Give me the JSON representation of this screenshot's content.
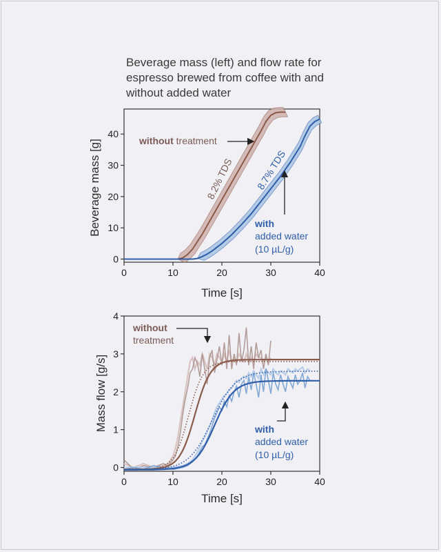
{
  "title_lines": [
    "Beverage mass (left) and flow rate for",
    "espresso brewed from coffee with and",
    "without added water"
  ],
  "colors": {
    "without": "#8a5a4a",
    "without_band": "#cfb2ad",
    "without_noisy": "#a98e8a",
    "without_noisy_light": "#d7c3c0",
    "with": "#2f5ea8",
    "with_band": "#a9c4e4",
    "with_noisy": "#6f9bd0",
    "with_noisy_light": "#b7cde9"
  },
  "chart_data": [
    {
      "type": "line",
      "title": "Beverage mass",
      "xlabel": "Time [s]",
      "ylabel": "Beverage mass [g]",
      "xlim": [
        0,
        40
      ],
      "ylim": [
        -1,
        48
      ],
      "xticks": [
        "0",
        "10",
        "20",
        "30",
        "40"
      ],
      "yticks": [
        "0",
        "10",
        "20",
        "30",
        "40"
      ],
      "series": [
        {
          "name": "without treatment",
          "band_halfwidth": 1.5,
          "x": [
            0,
            11,
            12,
            13,
            14,
            16,
            18,
            20,
            22,
            24,
            26,
            28,
            29,
            30,
            31,
            32,
            33
          ],
          "values": [
            0,
            0,
            0.4,
            1.5,
            3.2,
            8,
            13.5,
            19,
            24.5,
            30,
            35.5,
            41,
            44,
            46,
            46.8,
            47,
            47
          ]
        },
        {
          "name": "with added water (10 µL/g)",
          "band_halfwidth": 1.2,
          "x": [
            0,
            14,
            15,
            16,
            17,
            18,
            20,
            22,
            24,
            26,
            28,
            30,
            32,
            34,
            36,
            37,
            38,
            39,
            40
          ],
          "values": [
            0,
            0,
            0.2,
            0.8,
            1.6,
            2.6,
            5.0,
            7.8,
            11.0,
            14.5,
            18.5,
            22.5,
            26.5,
            31,
            36,
            39.5,
            42.5,
            44,
            44.8
          ]
        }
      ],
      "annotations": [
        {
          "bold": "without",
          "text": " treatment"
        },
        {
          "text": "8.2% TDS"
        },
        {
          "text": "8.7% TDS"
        },
        {
          "bold": "with",
          "lines": [
            "added water",
            "(10 µL/g)"
          ]
        }
      ]
    },
    {
      "type": "line",
      "title": "Mass flow",
      "xlabel": "Time [s]",
      "ylabel": "Mass flow [g/s]",
      "xlim": [
        0,
        40
      ],
      "ylim": [
        -0.1,
        4
      ],
      "xticks": [
        "0",
        "10",
        "20",
        "30",
        "40"
      ],
      "yticks": [
        "0",
        "1",
        "2",
        "3",
        "4"
      ],
      "series": [
        {
          "name": "without treatment (fit)",
          "fit": {
            "amplitude": 2.9,
            "midpoint": 14.5,
            "width": 1.6,
            "baseline": -0.05
          },
          "dotted": {
            "amplitude": 2.85,
            "midpoint": 13.2,
            "width": 1.5,
            "baseline": -0.05
          },
          "noisy_x": [
            0,
            2,
            4,
            6,
            8,
            9,
            10,
            10.5,
            11,
            11.5,
            12,
            12.5,
            13,
            13.5,
            14,
            14.5,
            15,
            15.5,
            16,
            16.5,
            17,
            17.5,
            18,
            18.5,
            19,
            19.5,
            20,
            20.5,
            21,
            21.5,
            22,
            22.5,
            23,
            23.5,
            24,
            24.5,
            25,
            25.5,
            26,
            26.5,
            27,
            27.5,
            28,
            28.5,
            29,
            29.5,
            30
          ],
          "noisy_y": [
            0.2,
            -0.05,
            0.05,
            0,
            0.1,
            0.05,
            0.2,
            0.3,
            0.55,
            0.9,
            1.4,
            1.8,
            2.1,
            2.5,
            2.6,
            2.9,
            2.75,
            2.4,
            3.0,
            2.6,
            2.2,
            2.9,
            3.1,
            2.5,
            2.85,
            3.2,
            2.7,
            3.3,
            2.6,
            3.5,
            2.6,
            3.0,
            2.7,
            3.55,
            2.8,
            3.1,
            3.7,
            2.7,
            3.2,
            2.6,
            3.3,
            2.9,
            3.1,
            2.6,
            3.0,
            2.7,
            3.35
          ],
          "noisy2_y": [
            0.1,
            0,
            0.1,
            0,
            0.05,
            0.1,
            0.3,
            0.5,
            0.8,
            1.2,
            1.6,
            2.0,
            2.4,
            2.8,
            2.9,
            2.6,
            2.8,
            2.7,
            3.0,
            2.8,
            2.6,
            3.0,
            2.9,
            2.7,
            3.0,
            2.9,
            2.8,
            3.0,
            2.8,
            3.1,
            2.8,
            2.9,
            2.8,
            3.0,
            2.9,
            2.8,
            3.0,
            2.8,
            2.9,
            2.8,
            3.0,
            2.9,
            2.9,
            2.8,
            2.9,
            2.8,
            2.9
          ]
        },
        {
          "name": "with added water (fit)",
          "fit": {
            "amplitude": 2.35,
            "midpoint": 18.5,
            "width": 2.0,
            "baseline": -0.06
          },
          "dotted": {
            "amplitude": 2.6,
            "midpoint": 18.0,
            "width": 2.4,
            "baseline": -0.06
          },
          "noisy_x": [
            0,
            2,
            4,
            6,
            8,
            10,
            12,
            13,
            14,
            15,
            16,
            16.5,
            17,
            17.5,
            18,
            18.5,
            19,
            19.5,
            20,
            20.5,
            21,
            21.5,
            22,
            22.5,
            23,
            23.5,
            24,
            24.5,
            25,
            25.5,
            26,
            26.5,
            27,
            27.5,
            28,
            28.5,
            29,
            29.5,
            30,
            30.5,
            31,
            31.5,
            32,
            32.5,
            33,
            33.5,
            34,
            34.5,
            35,
            35.5,
            36,
            36.5,
            37,
            37.5,
            38
          ],
          "noisy_y": [
            -0.05,
            0,
            -0.05,
            0.05,
            0,
            -0.05,
            0,
            0.05,
            0.15,
            0.3,
            0.55,
            0.6,
            0.75,
            0.9,
            1.1,
            1.3,
            1.45,
            1.6,
            1.5,
            1.75,
            1.6,
            1.9,
            1.75,
            2.0,
            2.15,
            1.85,
            2.2,
            2.3,
            1.95,
            2.4,
            2.05,
            2.5,
            2.2,
            1.85,
            2.45,
            2.0,
            2.6,
            2.3,
            1.95,
            2.5,
            2.2,
            2.05,
            2.45,
            2.2,
            2.0,
            2.4,
            2.25,
            2.1,
            2.45,
            2.2,
            2.3,
            2.5,
            2.1,
            2.4,
            2.3
          ],
          "noisy2_y": [
            0,
            0,
            0,
            0,
            0,
            0,
            0.05,
            0.1,
            0.2,
            0.4,
            0.7,
            0.8,
            0.95,
            1.1,
            1.25,
            1.45,
            1.6,
            1.7,
            1.8,
            1.9,
            1.95,
            2.05,
            2.1,
            2.2,
            2.3,
            2.25,
            2.35,
            2.4,
            2.35,
            2.5,
            2.4,
            2.55,
            2.45,
            2.35,
            2.6,
            2.45,
            2.6,
            2.5,
            2.45,
            2.6,
            2.5,
            2.45,
            2.55,
            2.5,
            2.45,
            2.6,
            2.55,
            2.5,
            2.6,
            2.55,
            2.6,
            2.65,
            2.5,
            2.6,
            2.55
          ]
        }
      ],
      "annotations": [
        {
          "bold": "without",
          "lines": [
            "treatment"
          ]
        },
        {
          "bold": "with",
          "lines": [
            "added water",
            "(10 µL/g)"
          ]
        }
      ]
    }
  ]
}
